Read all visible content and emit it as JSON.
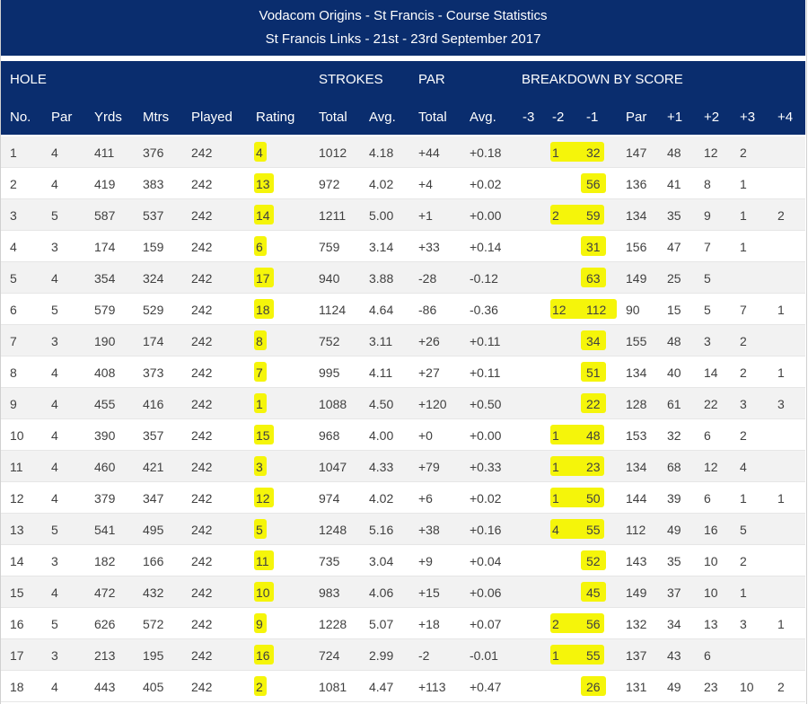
{
  "title": {
    "line1": "Vodacom Origins - St Francis - Course Statistics",
    "line2": "St Francis Links - 21st - 23rd September 2017"
  },
  "headers": {
    "groups": {
      "hole": "HOLE",
      "strokes": "STROKES",
      "par": "PAR",
      "breakdown": "BREAKDOWN BY SCORE"
    },
    "columns": [
      "No.",
      "Par",
      "Yrds",
      "Mtrs",
      "Played",
      "Rating",
      "Total",
      "Avg.",
      "Total",
      "Avg.",
      "-3",
      "-2",
      "-1",
      "Par",
      "+1",
      "+2",
      "+3",
      "+4"
    ]
  },
  "rows": [
    [
      "1",
      "4",
      "411",
      "376",
      "242",
      "4",
      "1012",
      "4.18",
      "+44",
      "+0.18",
      "",
      "1",
      "32",
      "147",
      "48",
      "12",
      "2",
      ""
    ],
    [
      "2",
      "4",
      "419",
      "383",
      "242",
      "13",
      "972",
      "4.02",
      "+4",
      "+0.02",
      "",
      "",
      "56",
      "136",
      "41",
      "8",
      "1",
      ""
    ],
    [
      "3",
      "5",
      "587",
      "537",
      "242",
      "14",
      "1211",
      "5.00",
      "+1",
      "+0.00",
      "",
      "2",
      "59",
      "134",
      "35",
      "9",
      "1",
      "2"
    ],
    [
      "4",
      "3",
      "174",
      "159",
      "242",
      "6",
      "759",
      "3.14",
      "+33",
      "+0.14",
      "",
      "",
      "31",
      "156",
      "47",
      "7",
      "1",
      ""
    ],
    [
      "5",
      "4",
      "354",
      "324",
      "242",
      "17",
      "940",
      "3.88",
      "-28",
      "-0.12",
      "",
      "",
      "63",
      "149",
      "25",
      "5",
      "",
      ""
    ],
    [
      "6",
      "5",
      "579",
      "529",
      "242",
      "18",
      "1124",
      "4.64",
      "-86",
      "-0.36",
      "",
      "12",
      "112",
      "90",
      "15",
      "5",
      "7",
      "1"
    ],
    [
      "7",
      "3",
      "190",
      "174",
      "242",
      "8",
      "752",
      "3.11",
      "+26",
      "+0.11",
      "",
      "",
      "34",
      "155",
      "48",
      "3",
      "2",
      ""
    ],
    [
      "8",
      "4",
      "408",
      "373",
      "242",
      "7",
      "995",
      "4.11",
      "+27",
      "+0.11",
      "",
      "",
      "51",
      "134",
      "40",
      "14",
      "2",
      "1"
    ],
    [
      "9",
      "4",
      "455",
      "416",
      "242",
      "1",
      "1088",
      "4.50",
      "+120",
      "+0.50",
      "",
      "",
      "22",
      "128",
      "61",
      "22",
      "3",
      "3"
    ],
    [
      "10",
      "4",
      "390",
      "357",
      "242",
      "15",
      "968",
      "4.00",
      "+0",
      "+0.00",
      "",
      "1",
      "48",
      "153",
      "32",
      "6",
      "2",
      ""
    ],
    [
      "11",
      "4",
      "460",
      "421",
      "242",
      "3",
      "1047",
      "4.33",
      "+79",
      "+0.33",
      "",
      "1",
      "23",
      "134",
      "68",
      "12",
      "4",
      ""
    ],
    [
      "12",
      "4",
      "379",
      "347",
      "242",
      "12",
      "974",
      "4.02",
      "+6",
      "+0.02",
      "",
      "1",
      "50",
      "144",
      "39",
      "6",
      "1",
      "1"
    ],
    [
      "13",
      "5",
      "541",
      "495",
      "242",
      "5",
      "1248",
      "5.16",
      "+38",
      "+0.16",
      "",
      "4",
      "55",
      "112",
      "49",
      "16",
      "5",
      ""
    ],
    [
      "14",
      "3",
      "182",
      "166",
      "242",
      "11",
      "735",
      "3.04",
      "+9",
      "+0.04",
      "",
      "",
      "52",
      "143",
      "35",
      "10",
      "2",
      ""
    ],
    [
      "15",
      "4",
      "472",
      "432",
      "242",
      "10",
      "983",
      "4.06",
      "+15",
      "+0.06",
      "",
      "",
      "45",
      "149",
      "37",
      "10",
      "1",
      ""
    ],
    [
      "16",
      "5",
      "626",
      "572",
      "242",
      "9",
      "1228",
      "5.07",
      "+18",
      "+0.07",
      "",
      "2",
      "56",
      "132",
      "34",
      "13",
      "3",
      "1"
    ],
    [
      "17",
      "3",
      "213",
      "195",
      "242",
      "16",
      "724",
      "2.99",
      "-2",
      "-0.01",
      "",
      "1",
      "55",
      "137",
      "43",
      "6",
      "",
      ""
    ],
    [
      "18",
      "4",
      "443",
      "405",
      "242",
      "2",
      "1081",
      "4.47",
      "+113",
      "+0.47",
      "",
      "",
      "26",
      "131",
      "49",
      "23",
      "10",
      "2"
    ]
  ]
}
